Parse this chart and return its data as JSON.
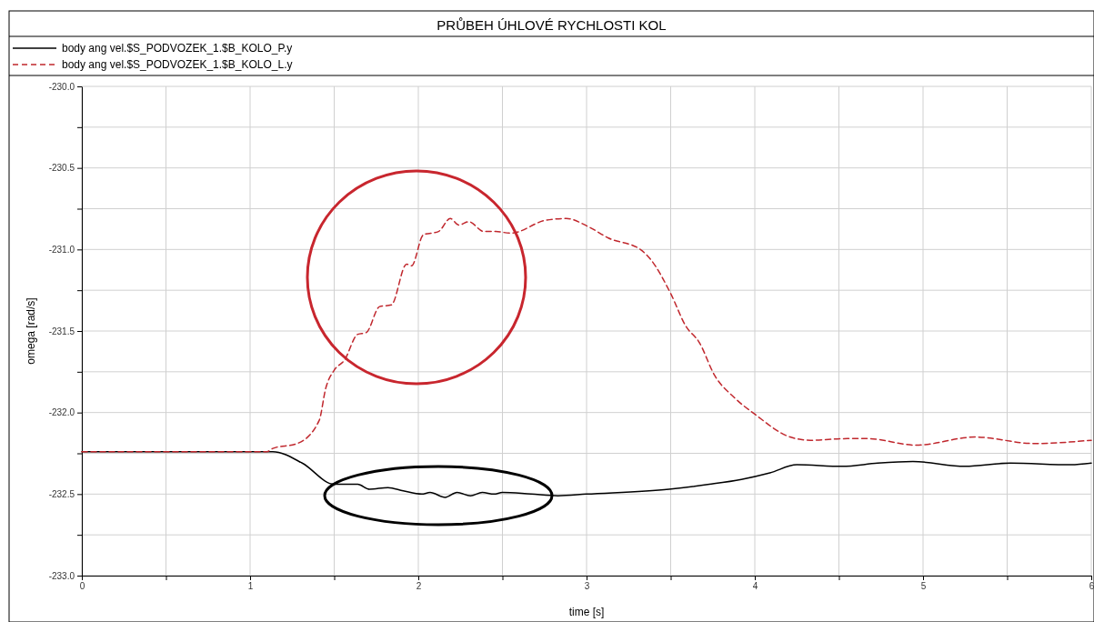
{
  "chart_data": {
    "type": "line",
    "title": "PRŮBEH ÚHLOVÉ RYCHLOSTI KOL",
    "xlabel": "time [s]",
    "ylabel": "omega [rad/s]",
    "xlim": [
      0,
      6
    ],
    "ylim": [
      -233,
      -230
    ],
    "xticks": [
      0,
      {
        "value": 0.5,
        "label": null
      },
      1,
      {
        "value": 1.5,
        "label": null
      },
      2,
      {
        "value": 2.5,
        "label": null
      },
      3,
      {
        "value": 3.5,
        "label": null
      },
      4,
      {
        "value": 4.5,
        "label": null
      },
      5,
      {
        "value": 5.5,
        "label": null
      },
      6
    ],
    "yticks": [
      {
        "value": -233,
        "label": "-233.0"
      },
      {
        "value": -232.75,
        "label": null
      },
      {
        "value": -232.5,
        "label": "-232.5"
      },
      {
        "value": -232.25,
        "label": null
      },
      {
        "value": -232,
        "label": "-232.0"
      },
      {
        "value": -231.75,
        "label": null
      },
      {
        "value": -231.5,
        "label": "-231.5"
      },
      {
        "value": -231.25,
        "label": null
      },
      {
        "value": -231,
        "label": "-231.0"
      },
      {
        "value": -230.75,
        "label": null
      },
      {
        "value": -230.5,
        "label": "-230.5"
      },
      {
        "value": -230.25,
        "label": null
      },
      {
        "value": -230,
        "label": "-230.0"
      }
    ],
    "grid": true,
    "legend": "top left",
    "marker": "none",
    "series": [
      {
        "name": "body ang vel.$S_PODVOZEK_1.$B_KOLO_P.y",
        "color": "#000000",
        "line_style": "solid",
        "x": [
          0,
          1.1,
          1.135,
          1.31,
          1.5,
          1.64,
          1.71,
          1.82,
          1.91,
          2.02,
          2.07,
          2.16,
          2.23,
          2.31,
          2.38,
          2.45,
          2.5,
          2.67,
          2.83,
          3.0,
          3.49,
          3.73,
          3.92,
          4.09,
          4.25,
          4.52,
          4.73,
          4.94,
          5.25,
          5.52,
          5.88,
          6.0
        ],
        "values": [
          -232.24,
          -232.24,
          -232.24,
          -232.31,
          -232.44,
          -232.44,
          -232.47,
          -232.46,
          -232.48,
          -232.5,
          -232.49,
          -232.52,
          -232.49,
          -232.51,
          -232.49,
          -232.5,
          -232.49,
          -232.5,
          -232.51,
          -232.5,
          -232.47,
          -232.44,
          -232.41,
          -232.37,
          -232.32,
          -232.33,
          -232.31,
          -232.3,
          -232.33,
          -232.31,
          -232.32,
          -232.31
        ]
      },
      {
        "name": "body ang vel.$S_PODVOZEK_1.$B_KOLO_L.y",
        "color": "#c0272d",
        "line_style": "dashed",
        "x": [
          0,
          1.1,
          1.135,
          1.28,
          1.41,
          1.45,
          1.5,
          1.56,
          1.64,
          1.69,
          1.77,
          1.84,
          1.93,
          1.96,
          2.03,
          2.12,
          2.19,
          2.24,
          2.3,
          2.39,
          2.46,
          2.55,
          2.76,
          2.88,
          3.01,
          3.13,
          3.32,
          3.38,
          3.5,
          3.59,
          3.67,
          3.76,
          3.88,
          4.0,
          4.21,
          4.33,
          4.55,
          4.67,
          4.96,
          5.31,
          5.66,
          6.0
        ],
        "values": [
          -232.24,
          -232.24,
          -232.22,
          -232.19,
          -232.05,
          -231.85,
          -231.74,
          -231.68,
          -231.52,
          -231.51,
          -231.35,
          -231.34,
          -231.09,
          -231.1,
          -230.91,
          -230.89,
          -230.81,
          -230.85,
          -230.83,
          -230.89,
          -230.89,
          -230.9,
          -230.82,
          -230.81,
          -230.86,
          -230.93,
          -231.0,
          -231.06,
          -231.27,
          -231.47,
          -231.57,
          -231.77,
          -231.91,
          -232.01,
          -232.15,
          -232.17,
          -232.16,
          -232.16,
          -232.2,
          -232.15,
          -232.19,
          -232.17
        ]
      }
    ]
  }
}
